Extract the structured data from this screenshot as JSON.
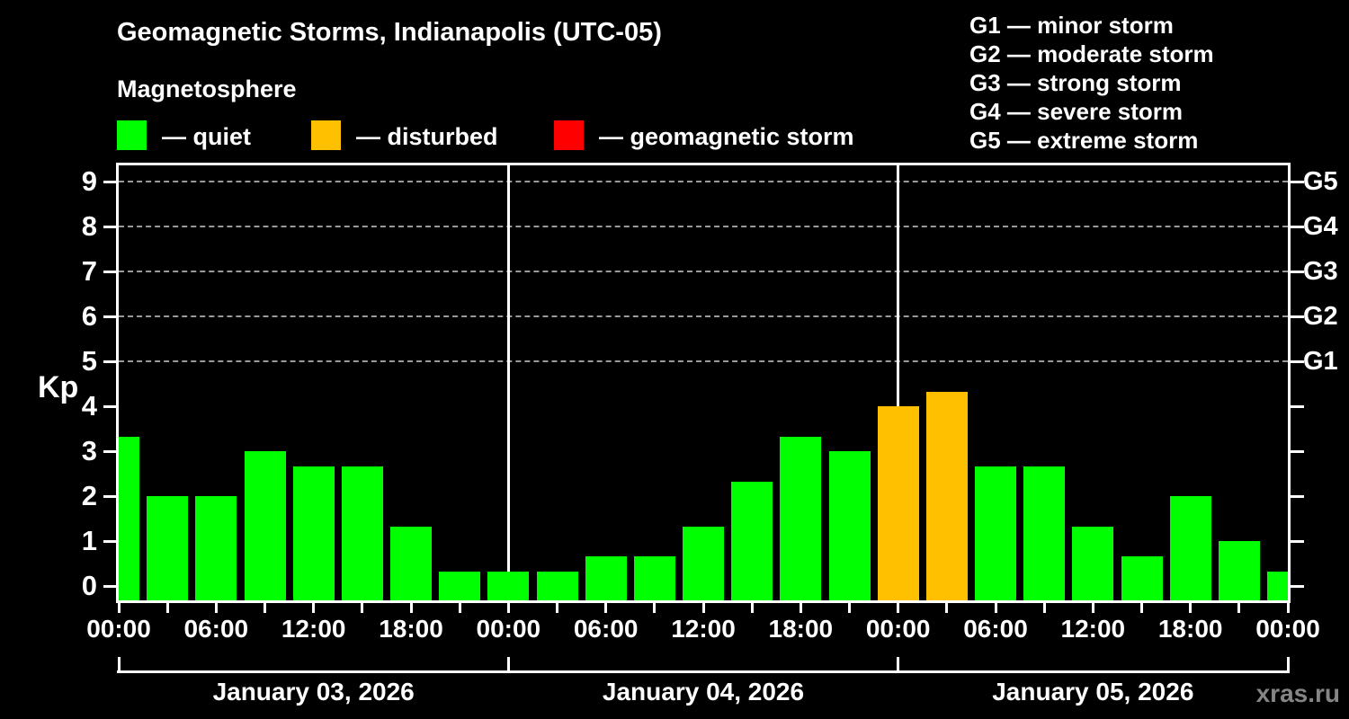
{
  "title": "Geomagnetic Storms, Indianapolis (UTC-05)",
  "subtitle": "Magnetosphere",
  "status_legend": [
    {
      "label": "— quiet",
      "status": "quiet",
      "color": "#00ff00"
    },
    {
      "label": "— disturbed",
      "status": "disturbed",
      "color": "#ffc000"
    },
    {
      "label": "— geomagnetic storm",
      "status": "storm",
      "color": "#ff0000"
    }
  ],
  "g_scale_legend": [
    "G1 — minor storm",
    "G2 — moderate storm",
    "G3 — strong storm",
    "G4 — severe storm",
    "G5 — extreme storm"
  ],
  "watermark": "xras.ru",
  "chart_data": {
    "type": "bar",
    "title": "Geomagnetic Storms, Indianapolis (UTC-05)",
    "ylabel": "Kp",
    "ylim": [
      0,
      9
    ],
    "yticks": [
      0,
      1,
      2,
      3,
      4,
      5,
      6,
      7,
      8,
      9
    ],
    "grid_kp_levels": [
      5,
      6,
      7,
      8,
      9
    ],
    "right_axis_labels": [
      {
        "kp": 5,
        "label": "G1"
      },
      {
        "kp": 6,
        "label": "G2"
      },
      {
        "kp": 7,
        "label": "G3"
      },
      {
        "kp": 8,
        "label": "G4"
      },
      {
        "kp": 9,
        "label": "G5"
      }
    ],
    "x_axis": {
      "span_hours": 72,
      "tick_step_hours": 3,
      "label_step_hours": 6,
      "labels": [
        "00:00",
        "06:00",
        "12:00",
        "18:00",
        "00:00",
        "06:00",
        "12:00",
        "18:00",
        "00:00",
        "06:00",
        "12:00",
        "18:00",
        "00:00"
      ],
      "day_boundary_hours": [
        0,
        24,
        48,
        72
      ],
      "day_labels": [
        "January 03, 2026",
        "January 04, 2026",
        "January 05, 2026"
      ]
    },
    "bars": [
      {
        "hour": 0,
        "kp": 3.33,
        "status": "quiet"
      },
      {
        "hour": 3,
        "kp": 2.0,
        "status": "quiet"
      },
      {
        "hour": 6,
        "kp": 2.0,
        "status": "quiet"
      },
      {
        "hour": 9,
        "kp": 3.0,
        "status": "quiet"
      },
      {
        "hour": 12,
        "kp": 2.67,
        "status": "quiet"
      },
      {
        "hour": 15,
        "kp": 2.67,
        "status": "quiet"
      },
      {
        "hour": 18,
        "kp": 1.33,
        "status": "quiet"
      },
      {
        "hour": 21,
        "kp": 0.33,
        "status": "quiet"
      },
      {
        "hour": 24,
        "kp": 0.33,
        "status": "quiet"
      },
      {
        "hour": 27,
        "kp": 0.33,
        "status": "quiet"
      },
      {
        "hour": 30,
        "kp": 0.67,
        "status": "quiet"
      },
      {
        "hour": 33,
        "kp": 0.67,
        "status": "quiet"
      },
      {
        "hour": 36,
        "kp": 1.33,
        "status": "quiet"
      },
      {
        "hour": 39,
        "kp": 2.33,
        "status": "quiet"
      },
      {
        "hour": 42,
        "kp": 3.33,
        "status": "quiet"
      },
      {
        "hour": 45,
        "kp": 3.0,
        "status": "quiet"
      },
      {
        "hour": 48,
        "kp": 4.0,
        "status": "disturbed"
      },
      {
        "hour": 51,
        "kp": 4.33,
        "status": "disturbed"
      },
      {
        "hour": 54,
        "kp": 2.67,
        "status": "quiet"
      },
      {
        "hour": 57,
        "kp": 2.67,
        "status": "quiet"
      },
      {
        "hour": 60,
        "kp": 1.33,
        "status": "quiet"
      },
      {
        "hour": 63,
        "kp": 0.67,
        "status": "quiet"
      },
      {
        "hour": 66,
        "kp": 2.0,
        "status": "quiet"
      },
      {
        "hour": 69,
        "kp": 1.0,
        "status": "quiet"
      },
      {
        "hour": 72,
        "kp": 0.33,
        "status": "quiet"
      }
    ]
  },
  "colors": {
    "background": "#000000",
    "axis": "#ffffff",
    "grid": "#9a9a9a",
    "quiet": "#00ff00",
    "disturbed": "#ffc000",
    "storm": "#ff0000",
    "watermark": "#858585"
  }
}
